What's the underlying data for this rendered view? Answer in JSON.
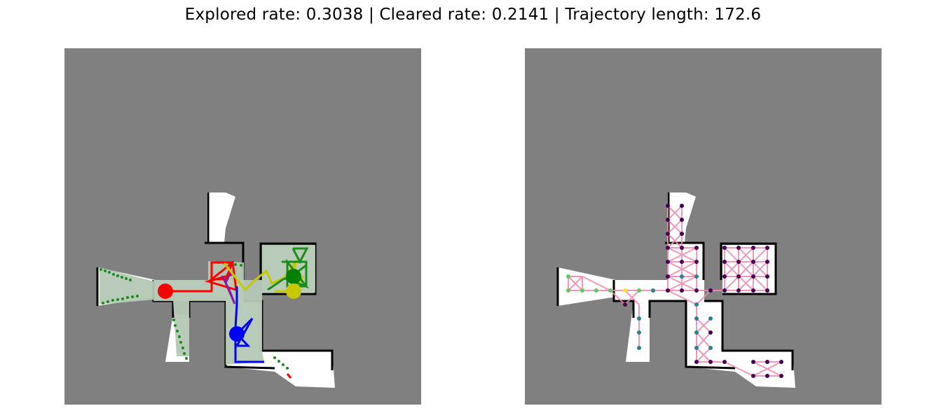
{
  "figure": {
    "title": "Explored rate: 0.3038 | Cleared rate: 0.2141 | Trajectory length: 172.6"
  },
  "panels": [
    {
      "id": "trajectory-map",
      "content": "explored map with agent trajectories"
    },
    {
      "id": "graph-map",
      "content": "explored map with waypoint graph"
    }
  ],
  "colors": {
    "unknown": "#808080",
    "free": "#ffffff",
    "wall": "#000000",
    "cleared": "#b4c8b4",
    "frontier": "#1a8a1a",
    "agent_red": "#ff0000",
    "agent_blue": "#0000ff",
    "agent_green": "#008000",
    "agent_yellow": "#c8c800",
    "agent_purple": "#8b1a9e",
    "graph_edge": "#f28bb0",
    "node_dark": "#440154",
    "node_teal": "#26828e",
    "node_green": "#5ec962",
    "node_yellow": "#fde725"
  },
  "agents": [
    {
      "name": "red",
      "color": "#ff0000"
    },
    {
      "name": "blue",
      "color": "#0000ff"
    },
    {
      "name": "green",
      "color": "#008000"
    },
    {
      "name": "yellow",
      "color": "#c8c800"
    }
  ]
}
